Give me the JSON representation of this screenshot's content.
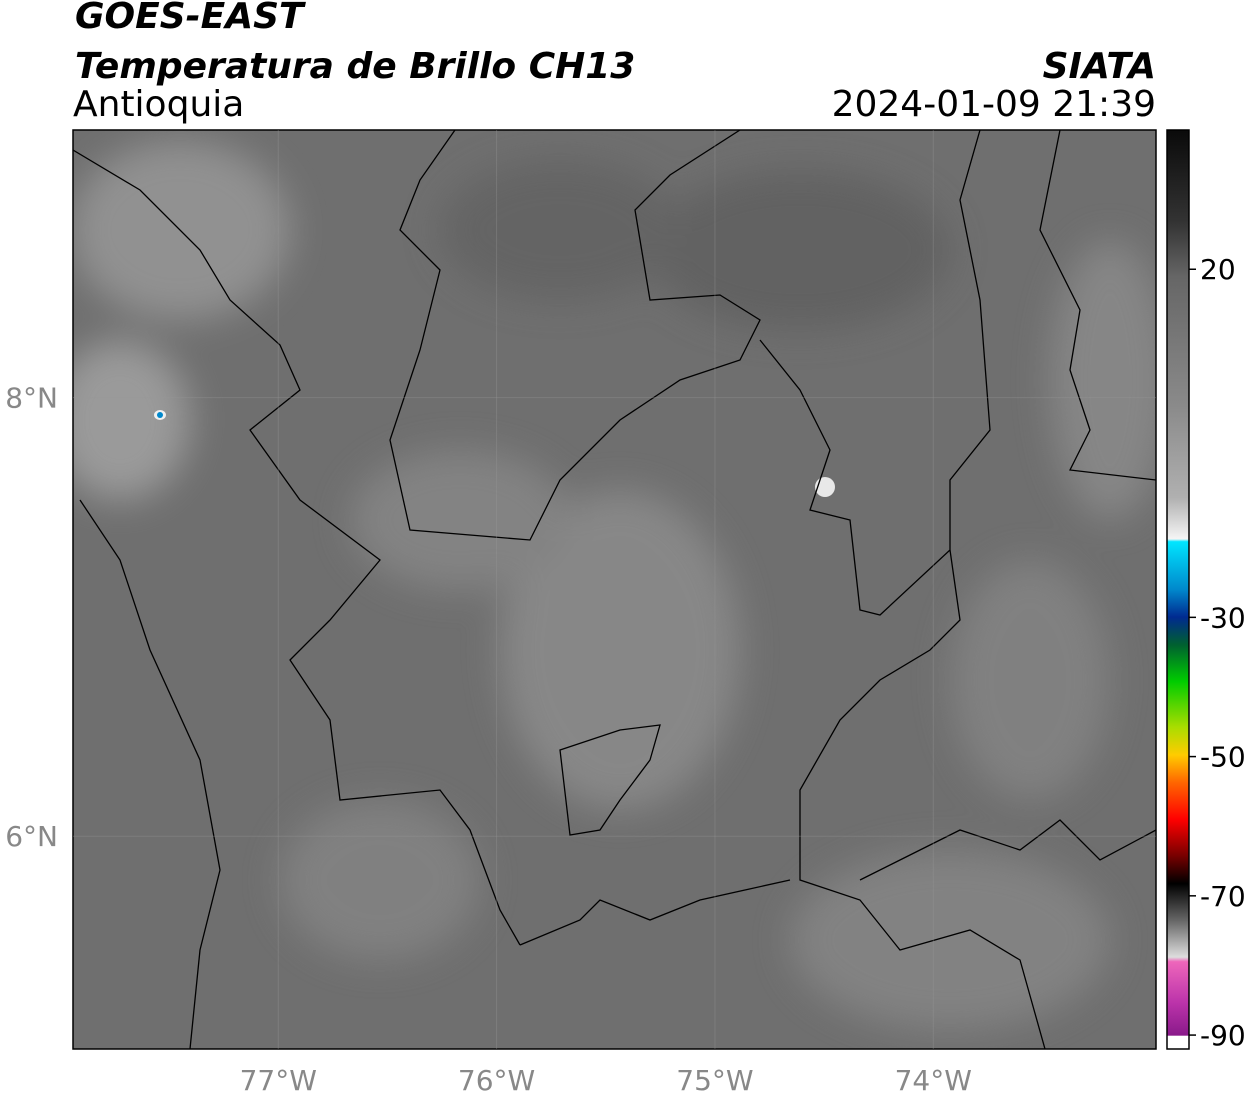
{
  "header": {
    "title": "GOES-EAST",
    "subtitle": "Temperatura de Brillo CH13",
    "region": "Antioquia",
    "source": "SIATA",
    "datetime": "2024-01-09 21:39"
  },
  "map": {
    "lonlim": [
      -77.94,
      -72.98
    ],
    "latlim": [
      5.03,
      9.22
    ],
    "lonticks": [
      {
        "value": -77,
        "label": "77°W"
      },
      {
        "value": -76,
        "label": "76°W"
      },
      {
        "value": -75,
        "label": "75°W"
      },
      {
        "value": -74,
        "label": "74°W"
      }
    ],
    "latticks": [
      {
        "value": 8,
        "label": "8°N"
      },
      {
        "value": 6,
        "label": "6°N"
      }
    ]
  },
  "colorbar": {
    "lim": [
      -92,
      40
    ],
    "ticks": [
      20,
      -30,
      -50,
      -70,
      -90
    ]
  }
}
